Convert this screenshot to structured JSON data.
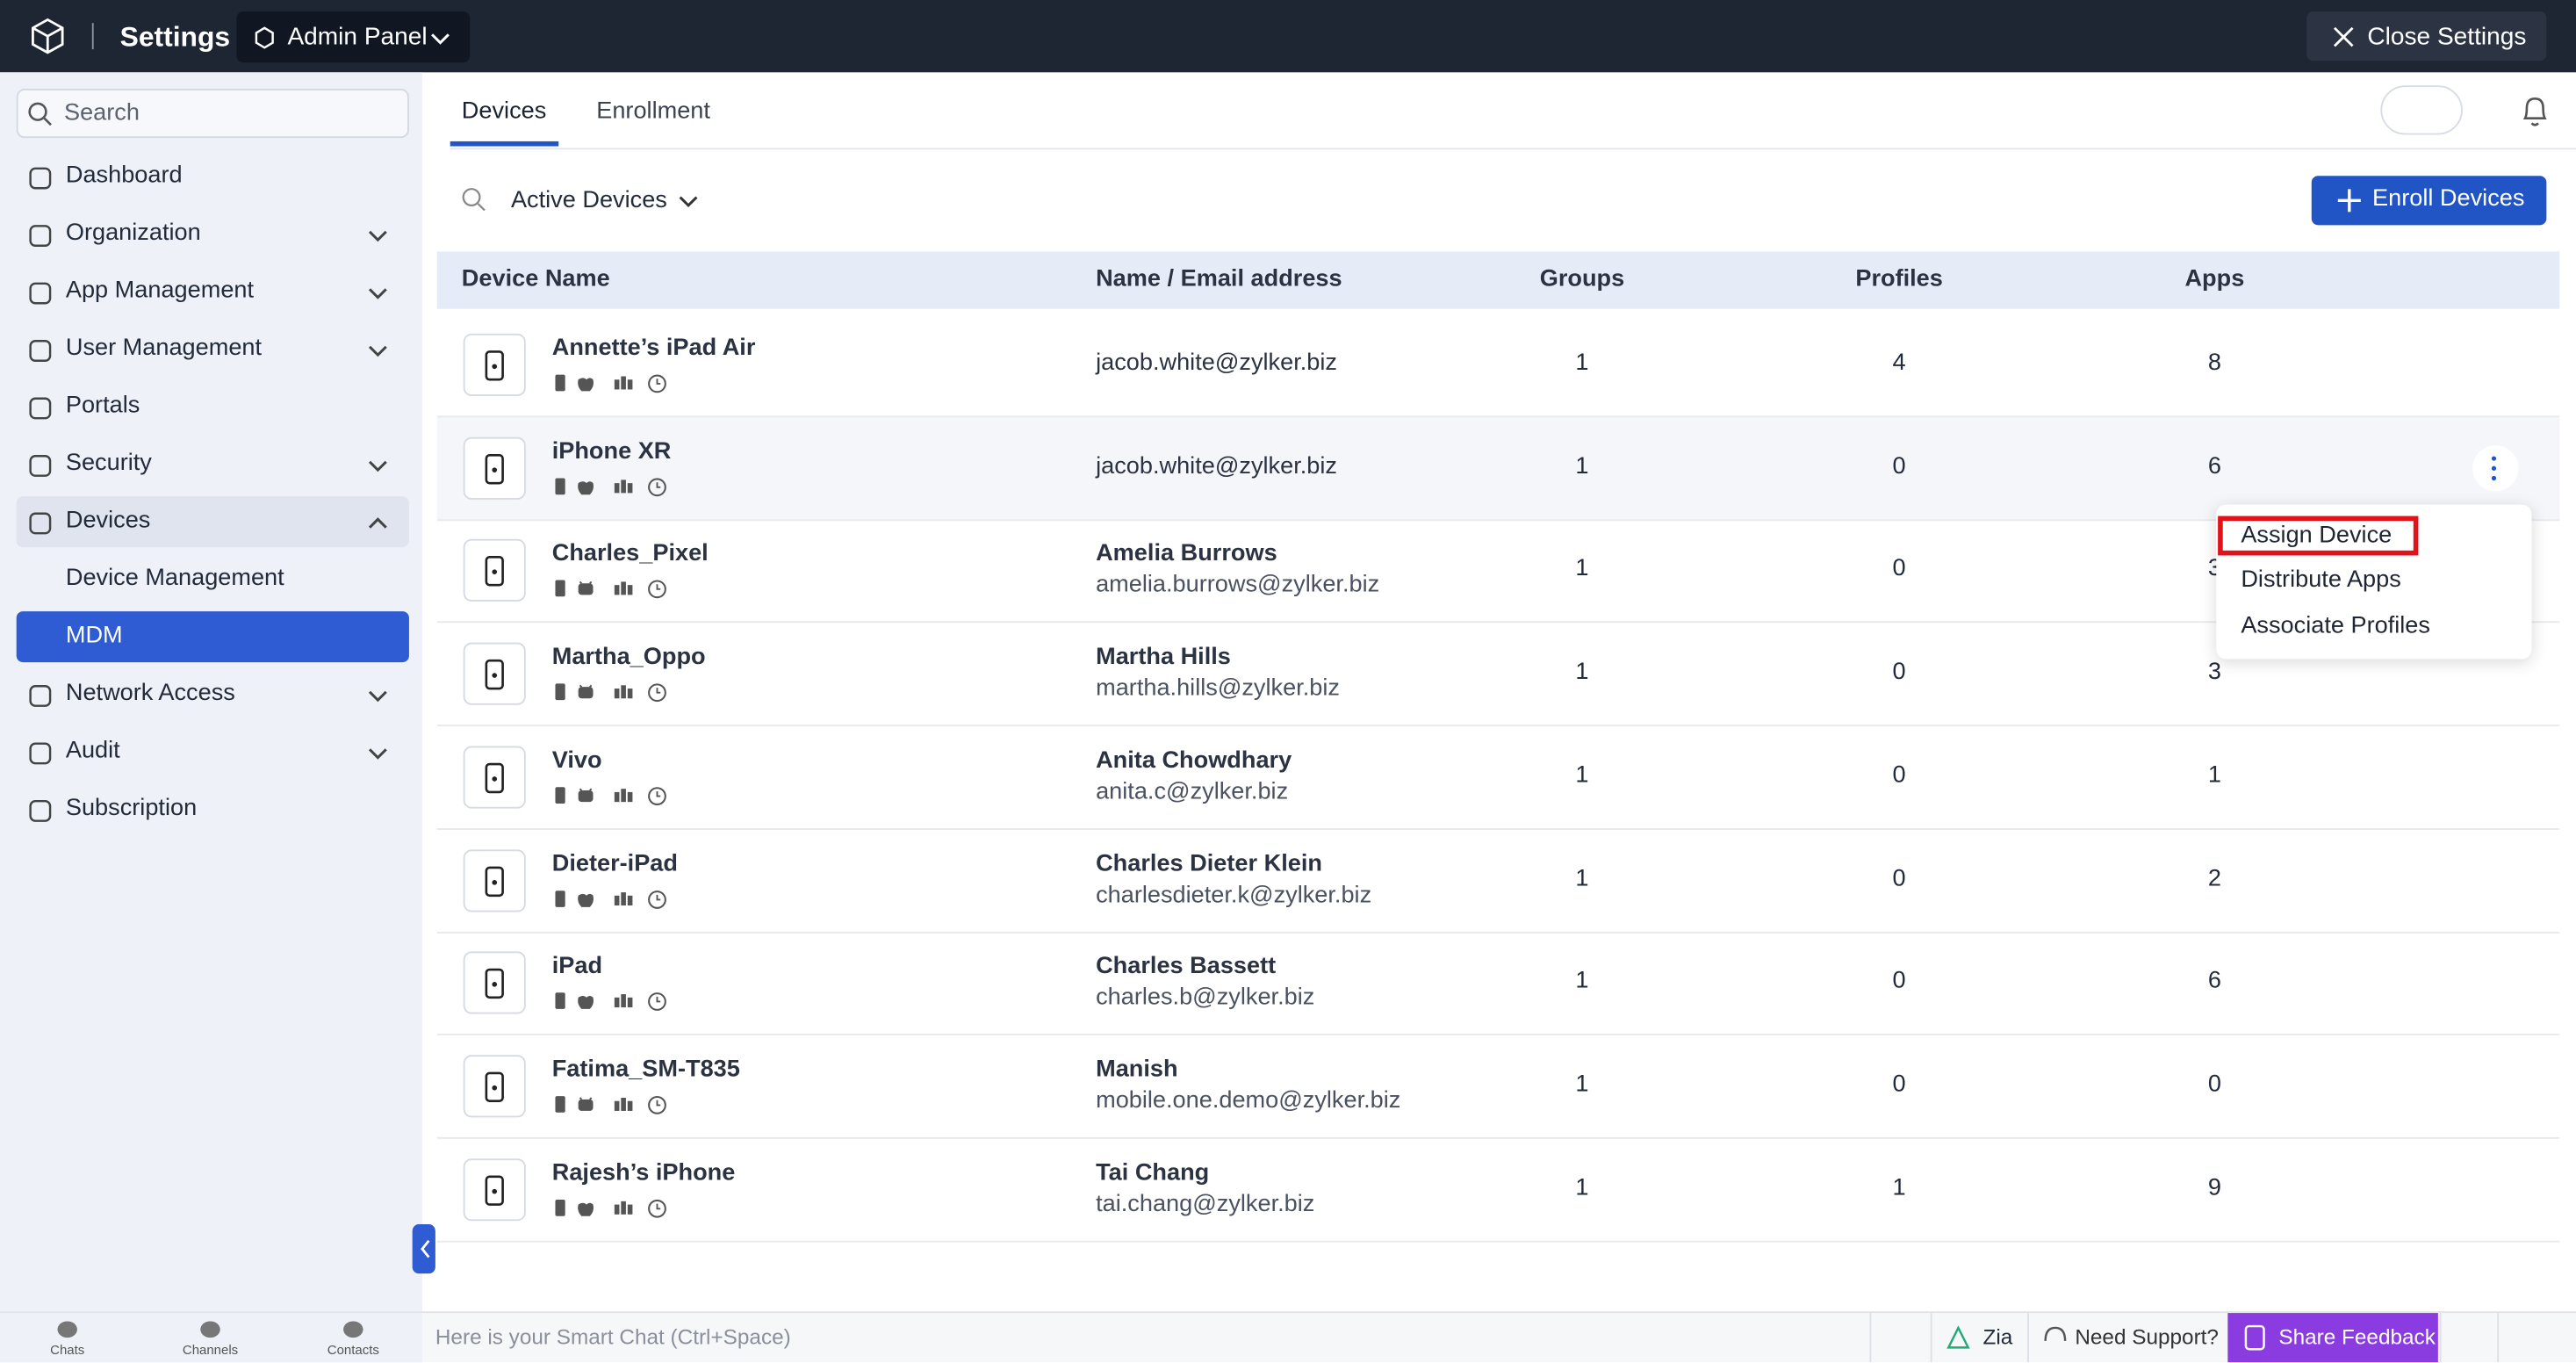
{
  "header": {
    "title": "Settings",
    "panel": "Admin Panel",
    "close": "Close Settings"
  },
  "sidebar": {
    "search": "Search",
    "items": [
      {
        "label": "Dashboard",
        "submenu": false
      },
      {
        "label": "Organization",
        "submenu": true
      },
      {
        "label": "App Management",
        "submenu": true
      },
      {
        "label": "User Management",
        "submenu": true
      },
      {
        "label": "Portals",
        "submenu": false
      },
      {
        "label": "Security",
        "submenu": true
      },
      {
        "label": "Devices",
        "submenu": true,
        "open": true,
        "children": [
          {
            "label": "Device Management"
          },
          {
            "label": "MDM",
            "selected": true
          }
        ]
      },
      {
        "label": "Network Access",
        "submenu": true
      },
      {
        "label": "Audit",
        "submenu": true
      },
      {
        "label": "Subscription",
        "submenu": false
      }
    ]
  },
  "tabs": {
    "items": [
      "Devices",
      "Enrollment"
    ],
    "active": 0
  },
  "filter": {
    "label": "Active Devices"
  },
  "enroll_button": "Enroll Devices",
  "table": {
    "columns": [
      "Device Name",
      "Name / Email address",
      "Groups",
      "Profiles",
      "Apps"
    ],
    "highlighted_row": 1,
    "rows": [
      {
        "device": "Annette’s iPad Air",
        "email": "jacob.white@zylker.biz",
        "groups": 1,
        "profiles": 4,
        "apps": 8,
        "platform": "apple"
      },
      {
        "device": "iPhone XR",
        "email": "jacob.white@zylker.biz",
        "groups": 1,
        "profiles": 0,
        "apps": 6,
        "platform": "apple"
      },
      {
        "device": "Charles_Pixel",
        "name": "Amelia Burrows",
        "email": "amelia.burrows@zylker.biz",
        "groups": 1,
        "profiles": 0,
        "apps": 3,
        "platform": "android"
      },
      {
        "device": "Martha_Oppo",
        "name": "Martha Hills",
        "email": "martha.hills@zylker.biz",
        "groups": 1,
        "profiles": 0,
        "apps": 3,
        "platform": "android"
      },
      {
        "device": "Vivo",
        "name": "Anita Chowdhary",
        "email": "anita.c@zylker.biz",
        "groups": 1,
        "profiles": 0,
        "apps": 1,
        "platform": "android"
      },
      {
        "device": "Dieter-iPad",
        "name": "Charles Dieter Klein",
        "email": "charlesdieter.k@zylker.biz",
        "groups": 1,
        "profiles": 0,
        "apps": 2,
        "platform": "apple"
      },
      {
        "device": "iPad",
        "name": "Charles Bassett",
        "email": "charles.b@zylker.biz",
        "groups": 1,
        "profiles": 0,
        "apps": 6,
        "platform": "apple"
      },
      {
        "device": "Fatima_SM-T835",
        "name": "Manish",
        "email": "mobile.one.demo@zylker.biz",
        "groups": 1,
        "profiles": 0,
        "apps": 0,
        "platform": "android"
      },
      {
        "device": "Rajesh’s iPhone",
        "name": "Tai Chang",
        "email": "tai.chang@zylker.biz",
        "groups": 1,
        "profiles": 1,
        "apps": 9,
        "platform": "apple"
      }
    ]
  },
  "context_menu": {
    "items": [
      "Assign Device",
      "Distribute Apps",
      "Associate Profiles"
    ],
    "highlighted": 0
  },
  "bottom_bar": {
    "tabs": [
      "Chats",
      "Channels",
      "Contacts"
    ],
    "smart_chat": "Here is your Smart Chat (Ctrl+Space)",
    "zia": "Zia",
    "support": "Need Support?",
    "feedback": "Share Feedback"
  }
}
